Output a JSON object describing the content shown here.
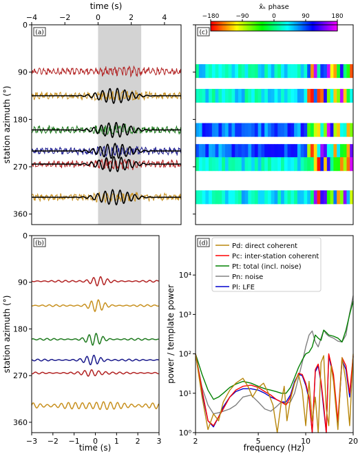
{
  "colors": {
    "red": "#b22222",
    "gold": "#c8901e",
    "green": "#1e7a1e",
    "navy": "#1a1a8c",
    "gray": "#d3d3d3",
    "leg_gold": "#b8860b",
    "leg_red": "#ff0000",
    "leg_green": "#008000",
    "leg_gray": "#808080",
    "leg_blue": "#0000cd"
  },
  "chart_data": [
    {
      "panel_label": "(a)",
      "type": "line",
      "xlabel": "time (s)",
      "ylabel": "station azimuth (°)",
      "xlim": [
        -4,
        5
      ],
      "ylim": [
        0,
        380
      ],
      "xticks": [
        "−4",
        "−2",
        "0",
        "2",
        "4"
      ],
      "yticks": [
        "0",
        "90",
        "180",
        "270",
        "360"
      ],
      "shaded_interval": [
        0,
        2.6
      ],
      "traces": [
        {
          "azimuth": 88,
          "color": "red",
          "template": false
        },
        {
          "azimuth": 135,
          "color": "gold",
          "template": true
        },
        {
          "azimuth": 200,
          "color": "green",
          "template": true
        },
        {
          "azimuth": 240,
          "color": "navy",
          "template": true
        },
        {
          "azimuth": 265,
          "color": "red",
          "template": true
        },
        {
          "azimuth": 328,
          "color": "gold",
          "template": true
        }
      ]
    },
    {
      "panel_label": "(b)",
      "type": "line",
      "xlabel": "time (s)",
      "ylabel": "station azimuth (°)",
      "xlim": [
        -3,
        3
      ],
      "ylim": [
        0,
        380
      ],
      "xticks": [
        "−3",
        "−2",
        "−1",
        "0",
        "1",
        "2",
        "3"
      ],
      "yticks": [
        "0",
        "90",
        "180",
        "270",
        "360"
      ],
      "traces": [
        {
          "azimuth": 88,
          "color": "red"
        },
        {
          "azimuth": 135,
          "color": "gold"
        },
        {
          "azimuth": 200,
          "color": "green"
        },
        {
          "azimuth": 240,
          "color": "navy"
        },
        {
          "azimuth": 265,
          "color": "red"
        },
        {
          "azimuth": 328,
          "color": "gold"
        }
      ]
    },
    {
      "panel_label": "(c)",
      "type": "heatmap",
      "colorbar_label": "x̂ₖ phase",
      "colorbar_ticks": [
        "−180",
        "−90",
        "0",
        "90",
        "180"
      ],
      "rows": [
        88,
        135,
        200,
        240,
        265,
        328
      ]
    },
    {
      "panel_label": "(d)",
      "type": "line",
      "xlabel": "frequency (Hz)",
      "ylabel": "power / template power",
      "xscale": "log",
      "yscale": "log",
      "xlim": [
        2,
        20
      ],
      "ylim": [
        1,
        100000
      ],
      "xticks": [
        "2",
        "5",
        "10",
        "20"
      ],
      "yticks": [
        "10⁰",
        "10¹",
        "10²",
        "10³",
        "10⁴"
      ],
      "legend": [
        {
          "label": "Pd: direct coherent",
          "color": "leg_gold"
        },
        {
          "label": "Pc: inter-station coherent",
          "color": "leg_red"
        },
        {
          "label": "Pt: total (incl. noise)",
          "color": "leg_green"
        },
        {
          "label": "Pn: noise",
          "color": "leg_gray"
        },
        {
          "label": "Pl: LFE",
          "color": "leg_blue"
        }
      ],
      "legend_placement": "top-left",
      "series": [
        {
          "label_index": 0,
          "color": "leg_gold",
          "x": [
            2,
            2.2,
            2.4,
            2.6,
            2.8,
            3,
            3.3,
            3.6,
            4,
            4.3,
            4.6,
            5,
            5.4,
            5.8,
            6.2,
            6.6,
            7,
            7.3,
            7.6,
            8,
            8.5,
            9,
            9.5,
            10,
            10.5,
            11,
            11.5,
            12,
            12.5,
            13,
            13.5,
            14,
            14.5,
            15,
            16,
            17,
            18,
            19,
            20
          ],
          "y": [
            100,
            8,
            1.2,
            3,
            2,
            6,
            12,
            18,
            24,
            15,
            8,
            14,
            18,
            10,
            5,
            1,
            6,
            15,
            2,
            7,
            18,
            30,
            12,
            1.5,
            20,
            2,
            8,
            1,
            60,
            90,
            4,
            1.5,
            50,
            20,
            1.2,
            80,
            20,
            1.5,
            100
          ]
        },
        {
          "label_index": 1,
          "color": "leg_red",
          "x": [
            2,
            2.2,
            2.4,
            2.6,
            2.8,
            3,
            3.3,
            3.6,
            4,
            4.5,
            5,
            5.5,
            6,
            6.5,
            7,
            7.5,
            8,
            8.5,
            9,
            9.5,
            10,
            10.5,
            11,
            11.5,
            12,
            12.5,
            13,
            13.5,
            14,
            15,
            16,
            17,
            18,
            19,
            20
          ],
          "y": [
            100,
            12,
            2,
            1.5,
            2.5,
            4,
            8,
            12,
            15,
            16,
            14,
            11,
            9,
            7,
            6,
            5,
            8,
            18,
            32,
            30,
            18,
            8,
            1,
            40,
            55,
            20,
            5,
            1,
            100,
            30,
            2,
            80,
            50,
            10,
            90
          ]
        },
        {
          "label_index": 2,
          "color": "leg_green",
          "x": [
            2,
            2.2,
            2.4,
            2.6,
            2.8,
            3,
            3.3,
            3.6,
            4,
            4.5,
            5,
            5.5,
            6,
            6.5,
            7,
            7.5,
            8,
            8.5,
            9,
            9.5,
            10,
            10.5,
            11,
            11.5,
            12,
            12.5,
            13,
            13.5,
            14,
            15,
            16,
            17,
            18,
            19,
            20
          ],
          "y": [
            100,
            30,
            12,
            7,
            8,
            10,
            14,
            17,
            20,
            18,
            15,
            13,
            12,
            11,
            10,
            10,
            14,
            25,
            45,
            70,
            100,
            110,
            150,
            300,
            250,
            220,
            400,
            350,
            300,
            280,
            250,
            200,
            400,
            1000,
            2200
          ]
        },
        {
          "label_index": 3,
          "color": "leg_gray",
          "x": [
            2,
            2.2,
            2.4,
            2.6,
            2.8,
            3,
            3.3,
            3.6,
            4,
            4.5,
            5,
            5.5,
            6,
            6.5,
            7,
            7.5,
            8,
            8.5,
            9,
            9.5,
            10,
            10.5,
            11,
            11.5,
            12,
            12.5,
            13,
            13.5,
            14,
            15,
            16,
            17,
            18,
            19,
            20
          ],
          "y": [
            100,
            14,
            5,
            3,
            3.2,
            3.5,
            4,
            5,
            8,
            9,
            6,
            4,
            3.5,
            4.5,
            6,
            5.5,
            6,
            10,
            25,
            60,
            150,
            300,
            380,
            200,
            150,
            250,
            400,
            320,
            280,
            250,
            210,
            200,
            300,
            1100,
            3000
          ]
        },
        {
          "label_index": 4,
          "color": "leg_blue",
          "x": [
            2,
            2.2,
            2.4,
            2.6,
            2.8,
            3,
            3.3,
            3.6,
            4,
            4.5,
            5,
            5.5,
            6,
            6.5,
            7,
            7.5,
            8,
            8.5,
            9,
            9.5,
            10,
            10.5,
            11,
            11.5,
            12,
            12.5,
            13,
            13.5,
            14,
            15,
            16,
            17,
            18,
            19,
            20
          ],
          "y": [
            100,
            10,
            2,
            1.4,
            2.5,
            4.5,
            8,
            11,
            13,
            13,
            12,
            10,
            8,
            7,
            6,
            6,
            9,
            20,
            30,
            28,
            16,
            7,
            1,
            35,
            50,
            18,
            4,
            1,
            90,
            25,
            1.5,
            70,
            40,
            8,
            85
          ]
        }
      ]
    }
  ]
}
